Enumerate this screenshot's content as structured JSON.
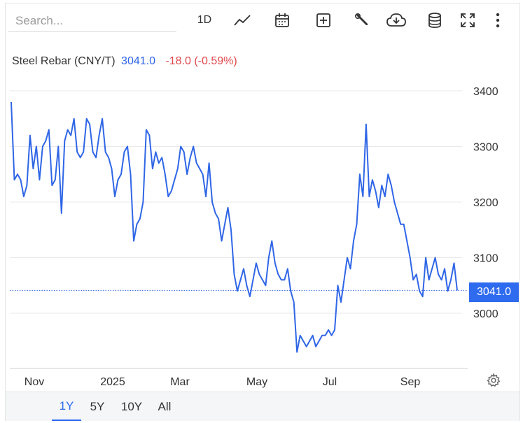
{
  "search": {
    "placeholder": "Search..."
  },
  "toolbar": {
    "interval_label": "1D",
    "icons": [
      "line-chart-icon",
      "calendar-icon",
      "add-indicator-icon",
      "wrench-icon",
      "download-icon",
      "database-icon",
      "fullscreen-icon",
      "more-icon"
    ]
  },
  "header": {
    "symbol_label": "Steel Rebar (CNY/T)",
    "last_price": "3041.0",
    "change": "-18.0 (-0.59%)"
  },
  "price_tag": "3041.0",
  "colors": {
    "line": "#2f66e6",
    "negative": "#e0474c",
    "tag": "#2f6bef",
    "grid": "#e9e9e9"
  },
  "ranges": [
    "1Y",
    "5Y",
    "10Y",
    "All"
  ],
  "active_range": "1Y",
  "settings_icon": "gear-icon",
  "chart_data": {
    "type": "line",
    "title": "Steel Rebar (CNY/T)",
    "xlabel": "",
    "ylabel": "",
    "x_ticks": [
      "Nov",
      "2025",
      "Mar",
      "May",
      "Jul",
      "Sep"
    ],
    "y_ticks": [
      3000,
      3100,
      3200,
      3300,
      3400
    ],
    "ylim": [
      2900,
      3400
    ],
    "grid": "horizontal",
    "reference_line": 3041.0,
    "series": [
      {
        "values": [
          3380,
          3240,
          3250,
          3240,
          3210,
          3230,
          3320,
          3260,
          3300,
          3240,
          3300,
          3310,
          3330,
          3230,
          3240,
          3300,
          3180,
          3310,
          3330,
          3320,
          3350,
          3290,
          3280,
          3290,
          3350,
          3340,
          3290,
          3280,
          3320,
          3350,
          3290,
          3280,
          3260,
          3210,
          3240,
          3250,
          3290,
          3300,
          3250,
          3130,
          3160,
          3170,
          3200,
          3330,
          3320,
          3260,
          3290,
          3270,
          3280,
          3250,
          3210,
          3220,
          3240,
          3260,
          3300,
          3290,
          3250,
          3280,
          3300,
          3270,
          3260,
          3250,
          3210,
          3270,
          3200,
          3180,
          3170,
          3130,
          3160,
          3190,
          3150,
          3070,
          3040,
          3060,
          3080,
          3050,
          3030,
          3060,
          3090,
          3070,
          3060,
          3050,
          3100,
          3130,
          3090,
          3070,
          3060,
          3060,
          3080,
          3040,
          3020,
          2930,
          2960,
          2950,
          2940,
          2950,
          2960,
          2940,
          2950,
          2960,
          2960,
          2970,
          2960,
          2970,
          3050,
          3020,
          3060,
          3100,
          3080,
          3130,
          3160,
          3250,
          3210,
          3340,
          3210,
          3240,
          3220,
          3190,
          3230,
          3210,
          3250,
          3230,
          3200,
          3180,
          3160,
          3160,
          3130,
          3100,
          3060,
          3070,
          3040,
          3030,
          3100,
          3060,
          3080,
          3100,
          3070,
          3060,
          3080,
          3040,
          3060,
          3090,
          3041
        ]
      }
    ]
  }
}
